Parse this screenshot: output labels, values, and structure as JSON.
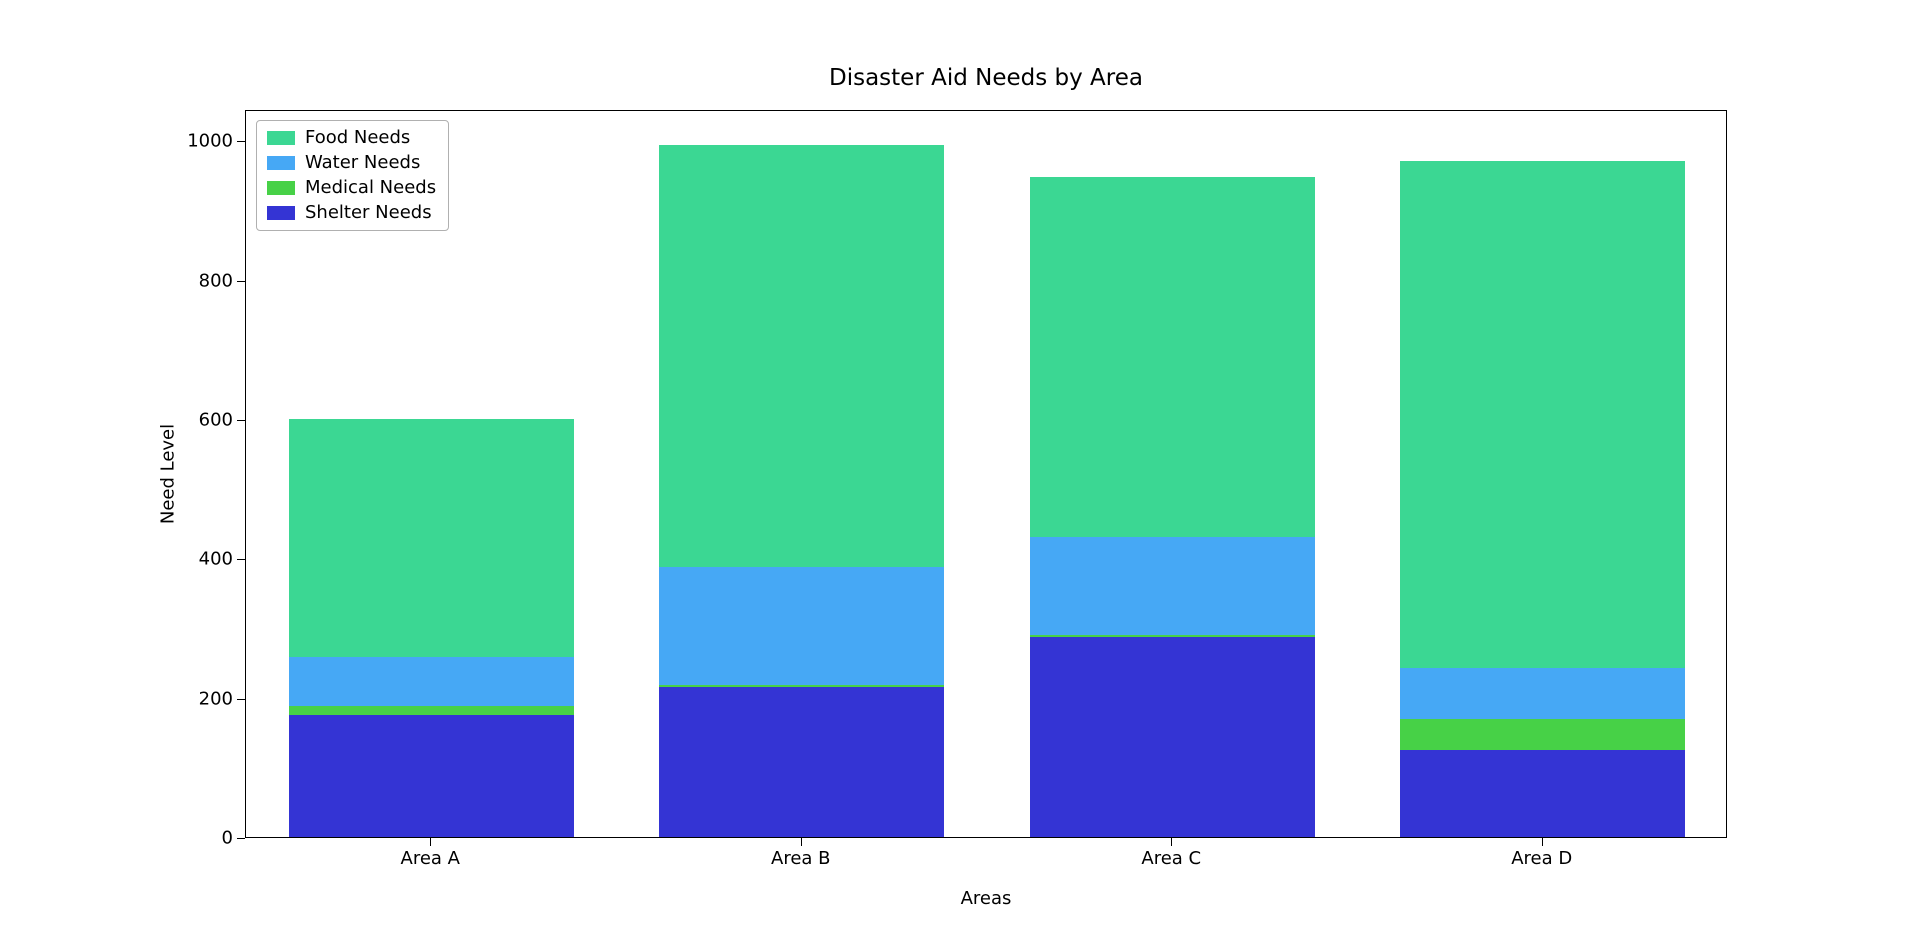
{
  "chart_data": {
    "type": "bar",
    "stacked": true,
    "title": "Disaster Aid Needs by Area",
    "xlabel": "Areas",
    "ylabel": "Need Level",
    "categories": [
      "Area A",
      "Area B",
      "Area C",
      "Area D"
    ],
    "series": [
      {
        "name": "Shelter Needs",
        "color": "#3434d4",
        "values": [
          175,
          215,
          287,
          125
        ]
      },
      {
        "name": "Medical Needs",
        "color": "#47d147",
        "values": [
          13,
          3,
          3,
          45
        ]
      },
      {
        "name": "Water Needs",
        "color": "#46a8f5",
        "values": [
          70,
          170,
          140,
          72
        ]
      },
      {
        "name": "Food Needs",
        "color": "#3bd793",
        "values": [
          342,
          605,
          518,
          728
        ]
      }
    ],
    "totals": [
      600,
      993,
      948,
      970
    ],
    "legend": [
      "Food Needs",
      "Water Needs",
      "Medical Needs",
      "Shelter Needs"
    ],
    "legend_position": "upper left",
    "y_ticks": [
      0,
      200,
      400,
      600,
      800,
      1000
    ],
    "ylim": [
      0,
      1045
    ],
    "grid": false,
    "bar_width_fraction": 0.77,
    "frame_color": "#000000",
    "background_color": "#ffffff"
  }
}
